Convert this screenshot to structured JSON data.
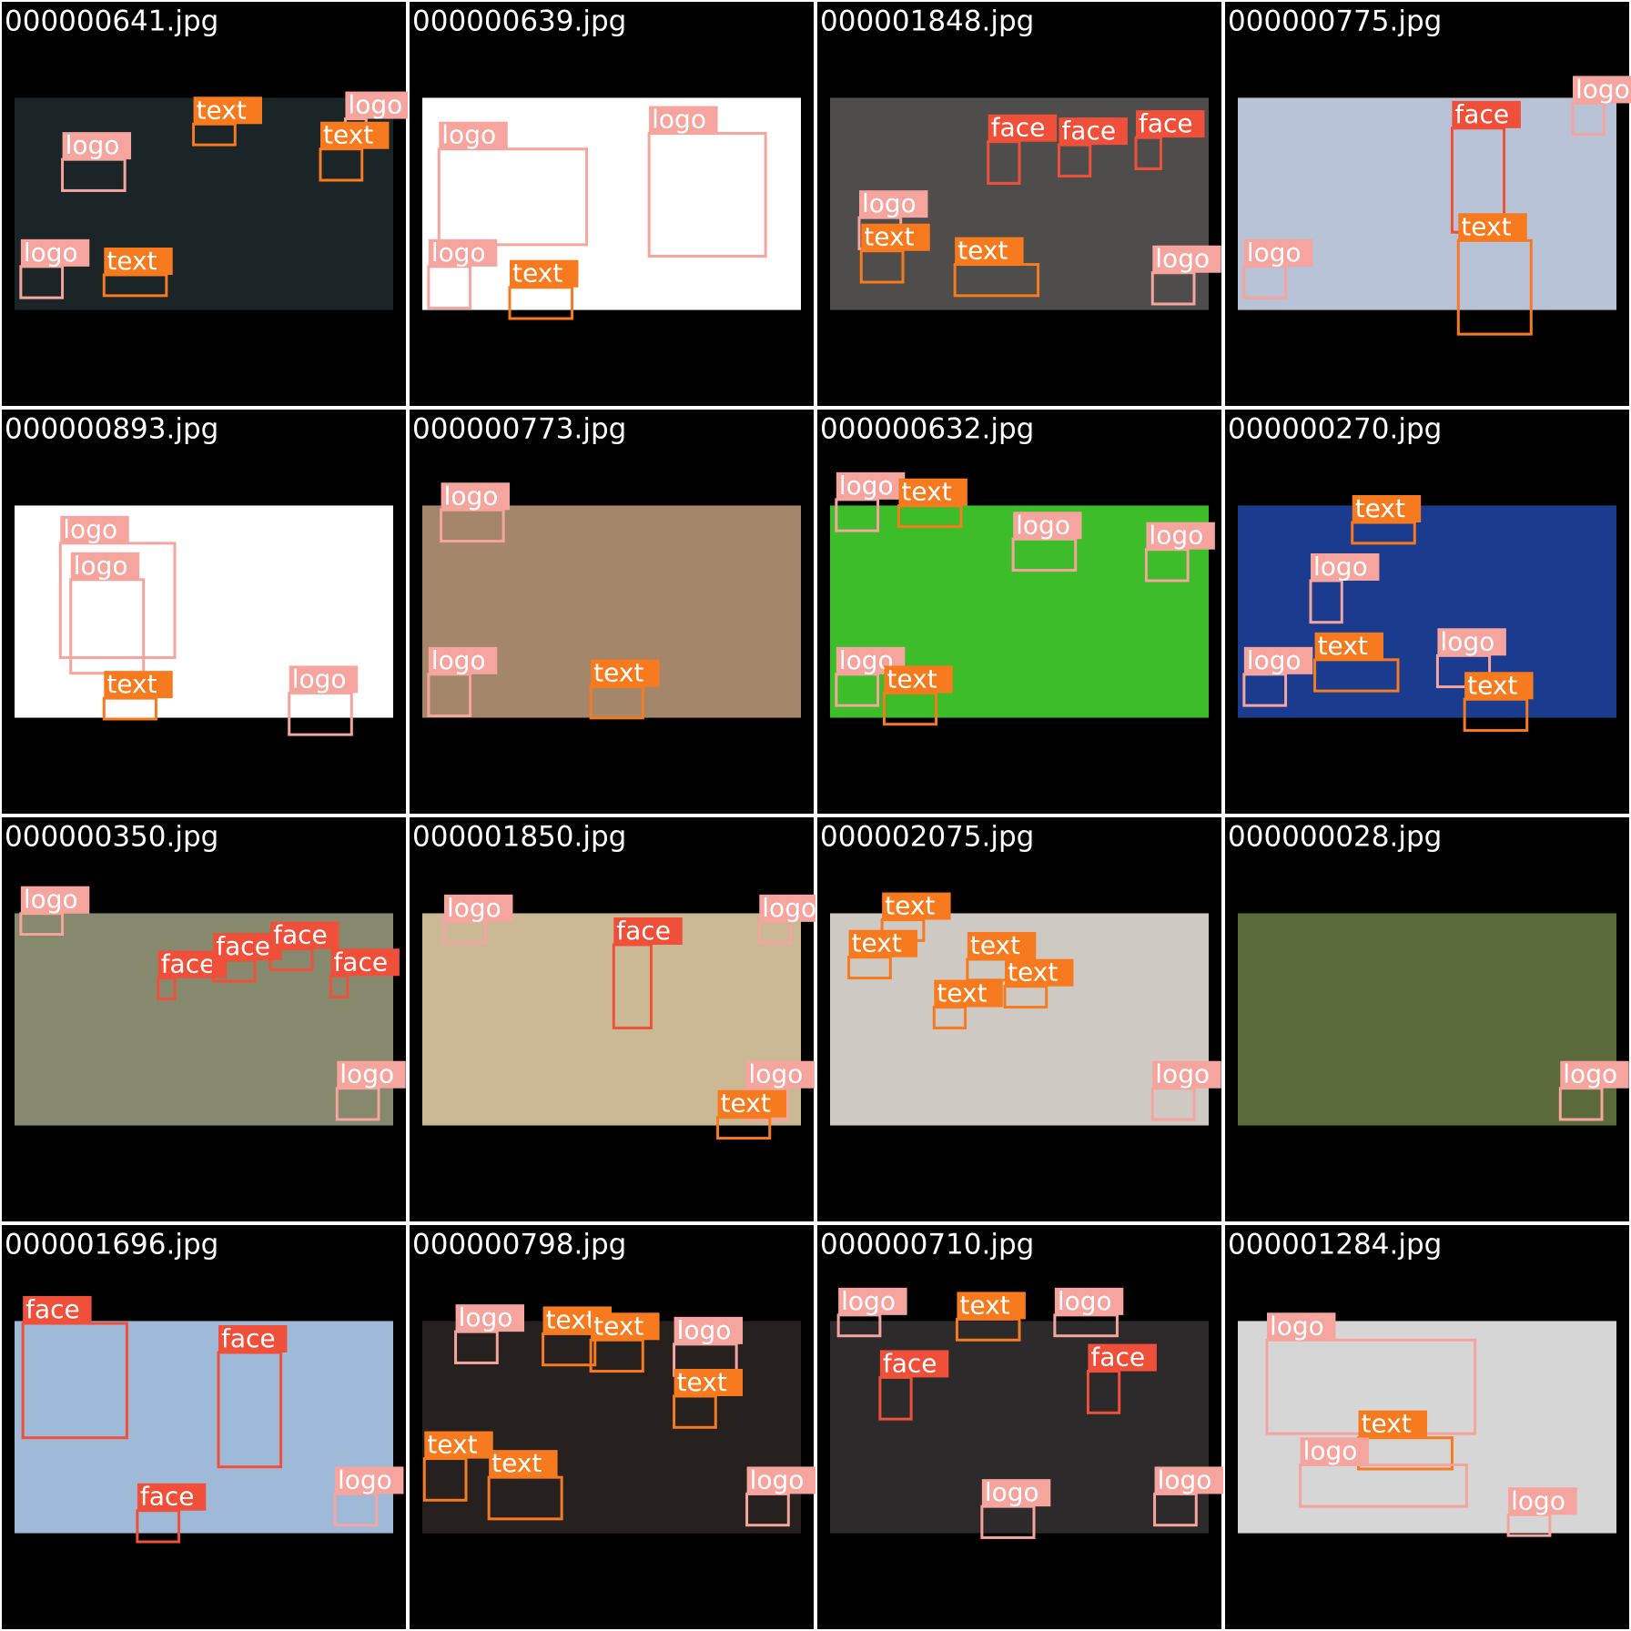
{
  "label_colors": {
    "text": "#f77a1e",
    "logo": "#f6a49e",
    "face": "#f0503a"
  },
  "tiles": [
    {
      "file": "000000641.jpg",
      "labels": [
        "text",
        "logo",
        "logo",
        "text",
        "logo",
        "text"
      ]
    },
    {
      "file": "000000639.jpg",
      "labels": [
        "logo",
        "logo",
        "text",
        "logo"
      ]
    },
    {
      "file": "000001848.jpg",
      "labels": [
        "face",
        "face",
        "face",
        "logo",
        "text",
        "logo",
        "text"
      ]
    },
    {
      "file": "000000775.jpg",
      "labels": [
        "face",
        "logo",
        "logo",
        "text"
      ]
    },
    {
      "file": "000000893.jpg",
      "labels": [
        "logo",
        "logo",
        "text",
        "logo"
      ]
    },
    {
      "file": "000000773.jpg",
      "labels": [
        "logo",
        "logo",
        "text"
      ]
    },
    {
      "file": "000000632.jpg",
      "labels": [
        "logo",
        "text",
        "logo",
        "logo",
        "logo",
        "text"
      ]
    },
    {
      "file": "000000270.jpg",
      "labels": [
        "text",
        "logo",
        "logo",
        "text",
        "logo",
        "text"
      ]
    },
    {
      "file": "000000350.jpg",
      "labels": [
        "logo",
        "face",
        "face",
        "face",
        "face",
        "logo"
      ]
    },
    {
      "file": "000001850.jpg",
      "labels": [
        "logo",
        "face",
        "logo",
        "logo",
        "text"
      ]
    },
    {
      "file": "000002075.jpg",
      "labels": [
        "text",
        "text",
        "text",
        "text",
        "text",
        "logo"
      ]
    },
    {
      "file": "000000028.jpg",
      "labels": [
        "logo"
      ]
    },
    {
      "file": "000001696.jpg",
      "labels": [
        "face",
        "face",
        "face",
        "logo"
      ]
    },
    {
      "file": "000000798.jpg",
      "labels": [
        "logo",
        "text",
        "text",
        "logo",
        "text",
        "text",
        "text",
        "logo"
      ]
    },
    {
      "file": "000000710.jpg",
      "labels": [
        "logo",
        "text",
        "logo",
        "face",
        "face",
        "logo",
        "logo"
      ]
    },
    {
      "file": "000001284.jpg",
      "labels": [
        "logo",
        "text",
        "logo",
        "logo"
      ]
    }
  ]
}
